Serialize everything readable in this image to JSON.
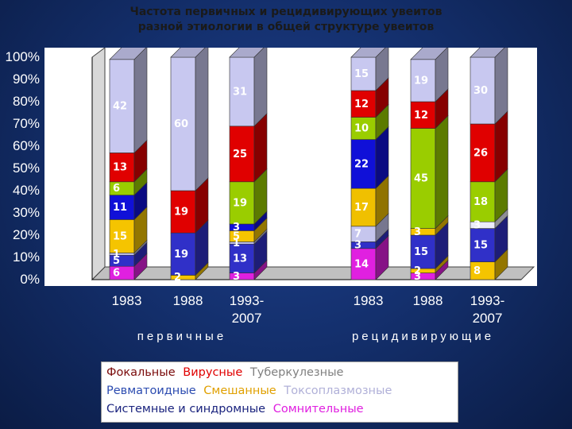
{
  "chart_data": {
    "type": "bar",
    "stacked": true,
    "title": [
      "Частота первичных и рецидивирующих увеитов",
      "разной этиологии в общей структуре увеитов"
    ],
    "categories": [
      "1983",
      "1988",
      "1993-\n2007",
      "1983",
      "1988",
      "1993-\n2007"
    ],
    "groups": [
      {
        "label": "первичные",
        "categories": [
          0,
          1,
          2
        ]
      },
      {
        "label": "рецидивирующие",
        "categories": [
          3,
          4,
          5
        ]
      }
    ],
    "ylim": [
      0,
      100
    ],
    "y_ticks": [
      "0%",
      "10%",
      "20%",
      "30%",
      "40%",
      "50%",
      "60%",
      "70%",
      "80%",
      "90%",
      "100%"
    ],
    "series": [
      {
        "name": "Сомнительные",
        "color": "#e020e0",
        "values": [
          6,
          0,
          3,
          14,
          3,
          0
        ],
        "labels": [
          "6",
          "",
          "3",
          "14",
          "3",
          ""
        ]
      },
      {
        "name": "Смешанные",
        "color": "#f5c400",
        "values": [
          0,
          2,
          0,
          0,
          2,
          8
        ],
        "labels": [
          "",
          "2",
          "",
          "",
          "2",
          "8"
        ]
      },
      {
        "name": "Ревматоидные",
        "color": "#3030c8",
        "values": [
          5,
          19,
          13,
          3,
          15,
          15
        ],
        "labels": [
          "5",
          "19",
          "13",
          "3",
          "15",
          "15"
        ]
      },
      {
        "name": "Токсоплазмозные",
        "color": "#c6c6ee",
        "values": [
          1,
          0,
          1,
          7,
          0,
          0
        ],
        "labels": [
          "1",
          "",
          "1",
          "7",
          "",
          ""
        ]
      },
      {
        "name": "Системные и синдромные",
        "color": "#f5c400",
        "values": [
          15,
          0,
          5,
          0,
          3,
          0
        ],
        "labels": [
          "15",
          "",
          "5",
          "",
          "3",
          ""
        ]
      },
      {
        "name": "Ревматоидные",
        "color": "#1010d8",
        "values": [
          11,
          0,
          3,
          0,
          0,
          0
        ],
        "labels": [
          "11",
          "",
          "3",
          "",
          "",
          ""
        ]
      },
      {
        "name": "Токсоплазмозные",
        "color": "#ececfa",
        "values": [
          0,
          0,
          0,
          0,
          0,
          3
        ],
        "labels": [
          "",
          "",
          "",
          "",
          "",
          "3"
        ]
      },
      {
        "name": "Смешанные",
        "color": "#f0c000",
        "values": [
          0,
          0,
          0,
          17,
          0,
          0
        ],
        "labels": [
          "",
          "",
          "",
          "17",
          "",
          ""
        ]
      },
      {
        "name": "Ревматоидные",
        "color": "#1010d8",
        "values": [
          0,
          0,
          0,
          22,
          0,
          0
        ],
        "labels": [
          "",
          "",
          "",
          "22",
          "",
          ""
        ]
      },
      {
        "name": "Туберкулезные",
        "color": "#9acd00",
        "values": [
          6,
          0,
          19,
          10,
          45,
          18
        ],
        "labels": [
          "6",
          "",
          "19",
          "10",
          "45",
          "18"
        ]
      },
      {
        "name": "Вирусные",
        "color": "#e00000",
        "values": [
          13,
          19,
          25,
          12,
          12,
          26
        ],
        "labels": [
          "13",
          "19",
          "25",
          "12",
          "12",
          "26"
        ]
      },
      {
        "name": "Фокальные",
        "color": "#c8c8f0",
        "values": [
          42,
          60,
          31,
          15,
          19,
          30
        ],
        "labels": [
          "42",
          "60",
          "31",
          "15",
          "19",
          "30"
        ]
      }
    ]
  },
  "legend": [
    [
      {
        "text": "Фокальные",
        "color": "#7a0a0a"
      },
      {
        "text": "Вирусные",
        "color": "#e00000"
      },
      {
        "text": "Туберкулезные",
        "color": "#808080"
      }
    ],
    [
      {
        "text": "Ревматоидные",
        "color": "#2b4bb0"
      },
      {
        "text": "Смешанные",
        "color": "#e0a000"
      },
      {
        "text": "Токсоплазмозные",
        "color": "#b0b0d8"
      }
    ],
    [
      {
        "text": "Системные и синдромные",
        "color": "#1a237e"
      },
      {
        "text": "Сомнительные",
        "color": "#e020e0"
      }
    ]
  ]
}
